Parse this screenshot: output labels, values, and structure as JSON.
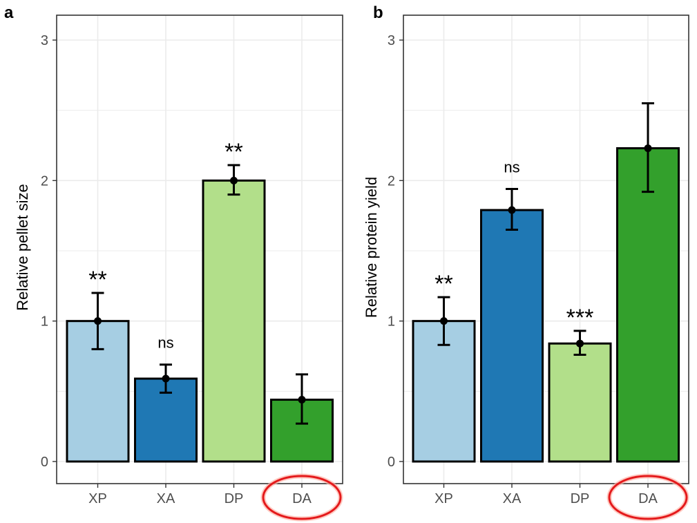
{
  "chart_data": [
    {
      "panel": "a",
      "type": "bar",
      "ylabel": "Relative pellet size",
      "categories": [
        "XP",
        "XA",
        "DP",
        "DA"
      ],
      "values": [
        1.0,
        0.59,
        2.0,
        0.44
      ],
      "error_low": [
        0.8,
        0.49,
        1.9,
        0.27
      ],
      "error_high": [
        1.2,
        0.69,
        2.11,
        0.62
      ],
      "significance": [
        "**",
        "ns",
        "**",
        ""
      ],
      "ylim": [
        0,
        3
      ],
      "yticks": [
        0,
        1,
        2,
        3
      ],
      "highlighted_category": "DA"
    },
    {
      "panel": "b",
      "type": "bar",
      "ylabel": "Relative protein yield",
      "categories": [
        "XP",
        "XA",
        "DP",
        "DA"
      ],
      "values": [
        1.0,
        1.79,
        0.84,
        2.23
      ],
      "error_low": [
        0.83,
        1.65,
        0.76,
        1.92
      ],
      "error_high": [
        1.17,
        1.94,
        0.93,
        2.55
      ],
      "significance": [
        "**",
        "ns",
        "***",
        ""
      ],
      "ylim": [
        0,
        3
      ],
      "yticks": [
        0,
        1,
        2,
        3
      ],
      "highlighted_category": "DA"
    }
  ],
  "colors": {
    "XP": "#a6cee3",
    "XA": "#1f78b4",
    "DP": "#b2df8a",
    "DA": "#33a02c",
    "highlight": "#e41a1c",
    "grid": "#ebebeb"
  }
}
